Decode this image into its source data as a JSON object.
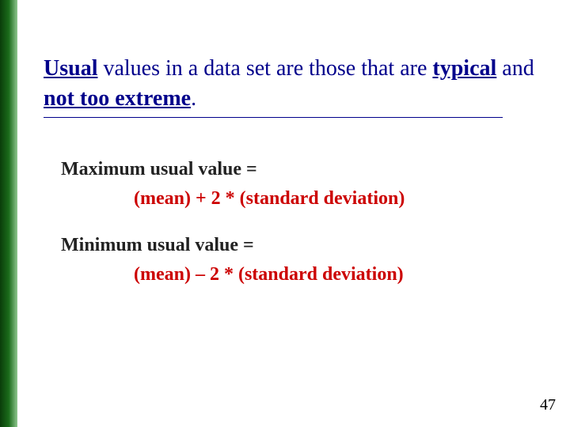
{
  "slide": {
    "title": {
      "usual": "Usual",
      "mid1": " values in a data set are those that are ",
      "typical": "typical",
      "mid2": " and ",
      "notextreme": "not too extreme",
      "period": "."
    },
    "max_label": "Maximum usual value  =",
    "max_formula": "(mean) + 2 * (standard deviation)",
    "min_label": "Minimum usual value   =",
    "min_formula": "(mean) – 2 * (standard deviation)",
    "page_number": "47"
  },
  "style": {
    "title_color": "#00008b",
    "formula_color": "#cc0000",
    "text_color": "#222222",
    "bar_gradient_start": "#0a3d0a",
    "bar_gradient_mid": "#1a6b1a",
    "bar_gradient_end": "#8fc78f",
    "title_fontsize": 28,
    "body_fontsize": 24,
    "font_family": "Georgia serif"
  }
}
